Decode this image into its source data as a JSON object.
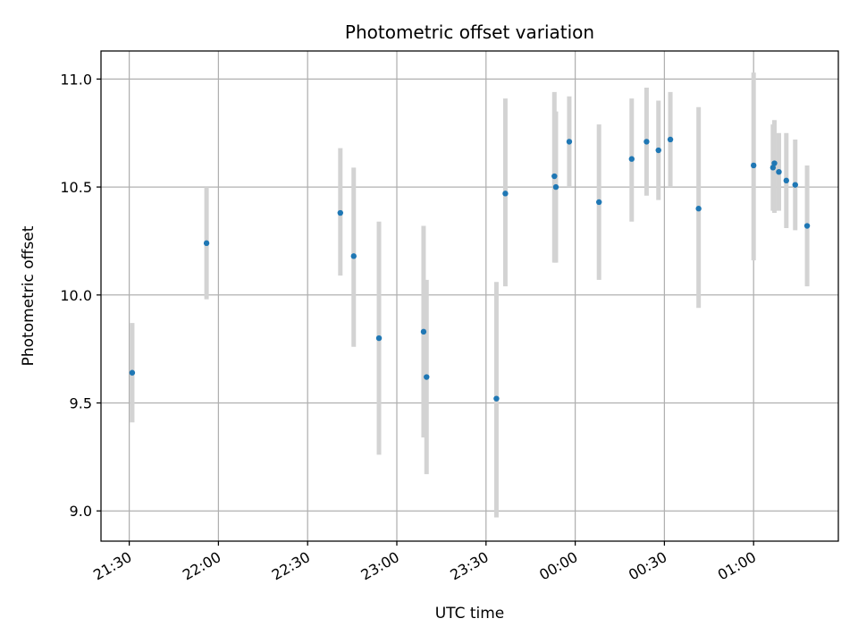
{
  "chart_data": {
    "type": "scatter",
    "title": "Photometric offset variation",
    "xlabel": "UTC time",
    "ylabel": "Photometric offset",
    "x_ticks": [
      "21:30",
      "22:00",
      "22:30",
      "23:00",
      "23:30",
      "00:00",
      "00:30",
      "01:00"
    ],
    "y_ticks": [
      "9.0",
      "9.5",
      "10.0",
      "10.5",
      "11.0"
    ],
    "xlim": [
      "21:20.5",
      "01:28.5"
    ],
    "ylim": [
      8.86,
      11.13
    ],
    "grid": true,
    "colors": {
      "point": "#1f77b4",
      "errorbar": "#d3d3d3",
      "grid": "#b0b0b0"
    },
    "points": [
      {
        "time": "21:31",
        "value": 9.64,
        "lower": 9.41,
        "upper": 9.87
      },
      {
        "time": "21:56",
        "value": 10.24,
        "lower": 9.98,
        "upper": 10.5
      },
      {
        "time": "22:41",
        "value": 10.38,
        "lower": 10.09,
        "upper": 10.68
      },
      {
        "time": "22:45.5",
        "value": 10.18,
        "lower": 9.76,
        "upper": 10.59
      },
      {
        "time": "22:54",
        "value": 9.8,
        "lower": 9.26,
        "upper": 10.34
      },
      {
        "time": "23:09",
        "value": 9.83,
        "lower": 9.34,
        "upper": 10.32
      },
      {
        "time": "23:10",
        "value": 9.62,
        "lower": 9.17,
        "upper": 10.07
      },
      {
        "time": "23:33.5",
        "value": 9.52,
        "lower": 8.97,
        "upper": 10.06
      },
      {
        "time": "23:36.5",
        "value": 10.47,
        "lower": 10.04,
        "upper": 10.91
      },
      {
        "time": "23:53",
        "value": 10.55,
        "lower": 10.15,
        "upper": 10.94
      },
      {
        "time": "23:53.5",
        "value": 10.5,
        "lower": 10.15,
        "upper": 10.85
      },
      {
        "time": "23:58",
        "value": 10.71,
        "lower": 10.5,
        "upper": 10.92
      },
      {
        "time": "00:08",
        "value": 10.43,
        "lower": 10.07,
        "upper": 10.79
      },
      {
        "time": "00:19",
        "value": 10.63,
        "lower": 10.34,
        "upper": 10.91
      },
      {
        "time": "00:24",
        "value": 10.71,
        "lower": 10.46,
        "upper": 10.96
      },
      {
        "time": "00:28",
        "value": 10.67,
        "lower": 10.44,
        "upper": 10.9
      },
      {
        "time": "00:32",
        "value": 10.72,
        "lower": 10.5,
        "upper": 10.94
      },
      {
        "time": "00:41.5",
        "value": 10.4,
        "lower": 9.94,
        "upper": 10.87
      },
      {
        "time": "01:00",
        "value": 10.6,
        "lower": 10.16,
        "upper": 11.03
      },
      {
        "time": "01:06.5",
        "value": 10.59,
        "lower": 10.39,
        "upper": 10.79
      },
      {
        "time": "01:07",
        "value": 10.61,
        "lower": 10.38,
        "upper": 10.81
      },
      {
        "time": "01:08.5",
        "value": 10.57,
        "lower": 10.39,
        "upper": 10.75
      },
      {
        "time": "01:11",
        "value": 10.53,
        "lower": 10.31,
        "upper": 10.75
      },
      {
        "time": "01:14",
        "value": 10.51,
        "lower": 10.3,
        "upper": 10.72
      },
      {
        "time": "01:18",
        "value": 10.32,
        "lower": 10.04,
        "upper": 10.6
      }
    ]
  }
}
